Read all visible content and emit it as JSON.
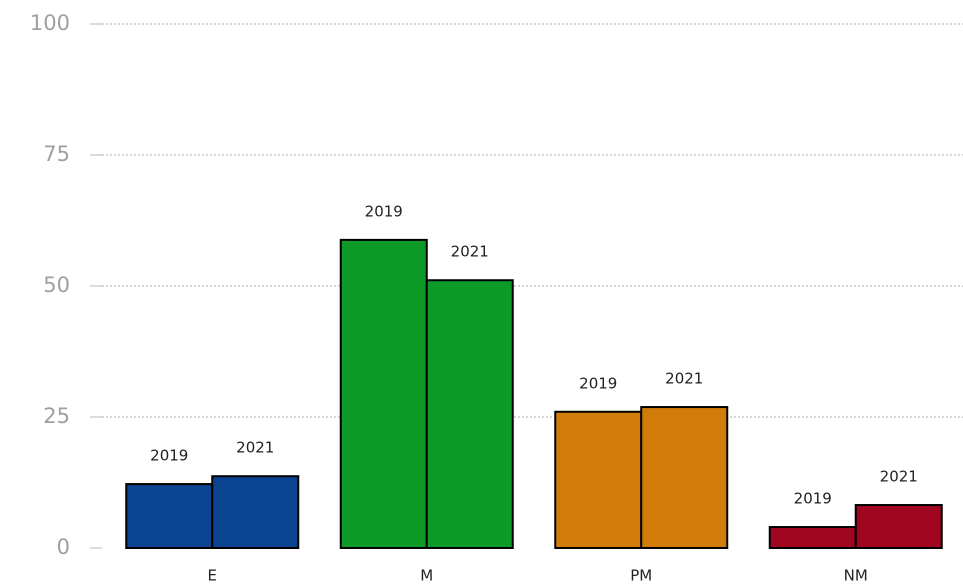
{
  "chart_data": {
    "type": "bar",
    "categories": [
      "E",
      "M",
      "PM",
      "NM"
    ],
    "colors": [
      "#0b4491",
      "#0e9a26",
      "#d17c08",
      "#a0061f"
    ],
    "series": [
      {
        "name": "2019",
        "values": [
          12.2,
          58.8,
          26,
          4
        ]
      },
      {
        "name": "2021",
        "values": [
          13.7,
          51.1,
          26.9,
          8.2
        ]
      }
    ],
    "ylim": [
      0,
      100
    ],
    "yticks": [
      0,
      25,
      50,
      75,
      100
    ],
    "grid": true
  }
}
